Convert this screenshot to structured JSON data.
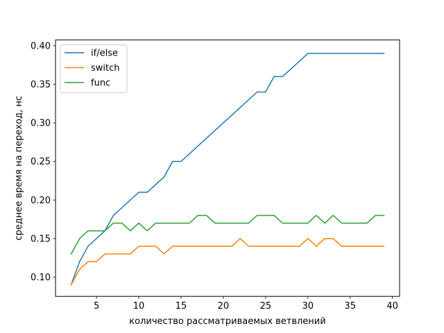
{
  "chart_data": {
    "type": "line",
    "title": "",
    "xlabel": "количество рассматриваемых ветвлений",
    "ylabel": "среднее время на переход, нс",
    "xlim": [
      0.15,
      40.85
    ],
    "ylim": [
      0.075,
      0.4075
    ],
    "xticks": [
      5,
      10,
      15,
      20,
      25,
      30,
      35,
      40
    ],
    "xtick_labels": [
      "5",
      "10",
      "15",
      "20",
      "25",
      "30",
      "35",
      "40"
    ],
    "yticks": [
      0.1,
      0.15,
      0.2,
      0.25,
      0.3,
      0.35,
      0.4
    ],
    "ytick_labels": [
      "0.10",
      "0.15",
      "0.20",
      "0.25",
      "0.30",
      "0.35",
      "0.40"
    ],
    "grid": false,
    "legend_position": "top-left",
    "x": [
      2,
      3,
      4,
      5,
      6,
      7,
      8,
      9,
      10,
      11,
      12,
      13,
      14,
      15,
      16,
      17,
      18,
      19,
      20,
      21,
      22,
      23,
      24,
      25,
      26,
      27,
      28,
      29,
      30,
      31,
      32,
      33,
      34,
      35,
      36,
      37,
      38,
      39
    ],
    "series": [
      {
        "name": "if/else",
        "color": "#1f77b4",
        "values": [
          0.09,
          0.12,
          0.14,
          0.15,
          0.16,
          0.18,
          0.19,
          0.2,
          0.21,
          0.21,
          0.22,
          0.23,
          0.25,
          0.25,
          0.26,
          0.27,
          0.28,
          0.29,
          0.3,
          0.31,
          0.32,
          0.33,
          0.34,
          0.34,
          0.36,
          0.36,
          0.37,
          0.38,
          0.39,
          0.39,
          0.39,
          0.39,
          0.39,
          0.39,
          0.39,
          0.39,
          0.39,
          0.39
        ]
      },
      {
        "name": "switch",
        "color": "#ff7f0e",
        "values": [
          0.09,
          0.11,
          0.12,
          0.12,
          0.13,
          0.13,
          0.13,
          0.13,
          0.14,
          0.14,
          0.14,
          0.13,
          0.14,
          0.14,
          0.14,
          0.14,
          0.14,
          0.14,
          0.14,
          0.14,
          0.15,
          0.14,
          0.14,
          0.14,
          0.14,
          0.14,
          0.14,
          0.14,
          0.15,
          0.14,
          0.15,
          0.15,
          0.14,
          0.14,
          0.14,
          0.14,
          0.14,
          0.14
        ]
      },
      {
        "name": "func",
        "color": "#2ca02c",
        "values": [
          0.13,
          0.15,
          0.16,
          0.16,
          0.16,
          0.17,
          0.17,
          0.16,
          0.17,
          0.16,
          0.17,
          0.17,
          0.17,
          0.17,
          0.17,
          0.18,
          0.18,
          0.17,
          0.17,
          0.17,
          0.17,
          0.17,
          0.18,
          0.18,
          0.18,
          0.17,
          0.17,
          0.17,
          0.17,
          0.18,
          0.17,
          0.18,
          0.17,
          0.17,
          0.17,
          0.17,
          0.18,
          0.18
        ]
      }
    ]
  }
}
